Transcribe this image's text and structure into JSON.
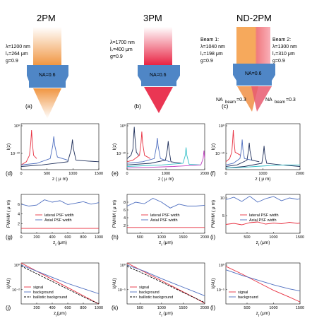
{
  "figure": {
    "columns": [
      {
        "title": "2PM",
        "params": [
          "λ=1200 nm",
          "lₛ=264 μm",
          "g=0.9"
        ],
        "na": "NA=0.6",
        "panel": "(a)"
      },
      {
        "title": "3PM",
        "params": [
          "λ=1700 nm",
          "lₛ=400 μm",
          "g=0.9"
        ],
        "na": "NA=0.6",
        "panel": "(b)"
      },
      {
        "title": "ND-2PM",
        "beam1": [
          "Beam 1:",
          "λ=1040 nm",
          "lₛ=198 μm",
          "g=0.9"
        ],
        "beam2": [
          "Beam 2:",
          "λ=1300 nm",
          "lₛ=310 μm",
          "g=0.9"
        ],
        "na": "NA=0.6",
        "na_beam_left": "NA",
        "na_beam_right": "NA",
        "na_beam_sub": "beam",
        "na_beam_val": "=0.3",
        "panel": "(c)"
      }
    ],
    "colors": {
      "orange": "#F0A050",
      "red": "#E83040",
      "blue": "#4F86C6",
      "navy": "#1F2F5A",
      "cyan": "#35C0C8",
      "magenta": "#C040C0"
    }
  },
  "chart_data": [
    {
      "id": "d",
      "type": "line",
      "panel": "(d)",
      "ylabel": "I(z)",
      "xlabel": "z ( μ m)",
      "xlim": [
        0,
        1500
      ],
      "xticks": [
        "0",
        "500",
        "1000",
        "1500"
      ],
      "yticks": [
        "10⁰",
        "10⁻¹⁰"
      ],
      "series": [
        {
          "color": "red",
          "x": [
            0,
            100,
            160,
            185,
            200,
            215,
            240,
            300
          ],
          "y": [
            -12,
            -11,
            -9,
            -5,
            -1,
            -5,
            -9,
            -10
          ]
        },
        {
          "color": "blue",
          "x": [
            0,
            300,
            560,
            610,
            630,
            650,
            700,
            900
          ],
          "y": [
            -12,
            -11.5,
            -10,
            -6,
            -3,
            -6,
            -9.5,
            -10.5
          ]
        },
        {
          "color": "navy",
          "x": [
            0,
            400,
            900,
            970,
            990,
            1010,
            1060,
            1300,
            1500
          ],
          "y": [
            -12.5,
            -12,
            -11,
            -7,
            -4,
            -7,
            -10.5,
            -10.8,
            -11
          ]
        }
      ]
    },
    {
      "id": "e",
      "type": "line",
      "panel": "(e)",
      "ylabel": "I(z)",
      "xlabel": "z ( μ m)",
      "xlim": [
        0,
        2000
      ],
      "xticks": [
        "0",
        "1000",
        "2000"
      ],
      "yticks": [
        "10⁰",
        "10⁻¹⁰"
      ],
      "series": [
        {
          "color": "navy",
          "x": [
            0,
            100,
            150,
            170,
            185,
            200,
            240,
            300
          ],
          "y": [
            -10,
            -9,
            -7,
            -3,
            0,
            -3,
            -8,
            -9
          ]
        },
        {
          "color": "red",
          "x": [
            0,
            150,
            320,
            360,
            380,
            400,
            450,
            600
          ],
          "y": [
            -11,
            -10.5,
            -9,
            -5,
            -1.5,
            -5,
            -9,
            -10
          ]
        },
        {
          "color": "blue",
          "x": [
            0,
            400,
            700,
            760,
            780,
            800,
            860,
            1100
          ],
          "y": [
            -11.5,
            -11,
            -10,
            -6,
            -3.5,
            -6,
            -10,
            -11
          ]
        },
        {
          "color": "navy",
          "x": [
            0,
            600,
            990,
            1040,
            1060,
            1080,
            1130,
            1400
          ],
          "y": [
            -12,
            -11.5,
            -10.5,
            -7,
            -4.5,
            -7,
            -11,
            -11.5
          ]
        },
        {
          "color": "cyan",
          "x": [
            0,
            900,
            1440,
            1500,
            1520,
            1540,
            1600,
            1900
          ],
          "y": [
            -12.5,
            -12,
            -11.5,
            -9,
            -6.5,
            -9,
            -11.8,
            -12
          ]
        },
        {
          "color": "magenta",
          "x": [
            0,
            1200,
            1900,
            1960,
            1980,
            2000
          ],
          "y": [
            -13,
            -12.5,
            -12,
            -10,
            -7.5,
            -10
          ]
        }
      ]
    },
    {
      "id": "f",
      "type": "line",
      "panel": "(f)",
      "ylabel": "I(z)",
      "xlabel": "z ( μ m)",
      "xlim": [
        0,
        2000
      ],
      "xticks": [
        "0",
        "1000",
        "2000"
      ],
      "yticks": [
        "10⁰",
        "10⁻¹⁰"
      ],
      "series": [
        {
          "color": "red",
          "x": [
            0,
            100,
            160,
            185,
            200,
            215,
            250,
            400
          ],
          "y": [
            -11,
            -10,
            -8,
            -4,
            -1,
            -4,
            -8,
            -9
          ]
        },
        {
          "color": "blue",
          "x": [
            0,
            200,
            380,
            420,
            440,
            460,
            500,
            700
          ],
          "y": [
            -12,
            -11.5,
            -10,
            -7,
            -4,
            -7,
            -10,
            -10.5
          ]
        },
        {
          "color": "navy",
          "x": [
            0,
            300,
            570,
            610,
            630,
            650,
            700,
            900
          ],
          "y": [
            -12.5,
            -12,
            -10.5,
            -7.5,
            -5,
            -7.5,
            -10.5,
            -11
          ]
        },
        {
          "color": "navy",
          "x": [
            0,
            500,
            970,
            1010,
            1030,
            1050,
            1100,
            1500,
            2000
          ],
          "y": [
            -13,
            -12.5,
            -11.5,
            -8.5,
            -6,
            -8.5,
            -11.5,
            -12,
            -12.5
          ]
        },
        {
          "color": "cyan",
          "x": [
            0,
            400,
            800,
            1200,
            1600,
            2000
          ],
          "y": [
            -13,
            -12.8,
            -12.5,
            -12.2,
            -12,
            -12
          ]
        }
      ]
    },
    {
      "id": "g",
      "type": "line",
      "panel": "(g)",
      "ylabel": "FWHM ( μ m)",
      "xlabel": "z",
      "xlabel_sub": "f",
      "xlabel_unit": " (μm)",
      "xlim": [
        0,
        1000
      ],
      "ylim": [
        0,
        8
      ],
      "xticks": [
        "0",
        "200",
        "400",
        "600",
        "800",
        "1000"
      ],
      "yticks": [
        "2",
        "4",
        "6"
      ],
      "legend": [
        "lateral PSF width",
        "Axial PSF width"
      ],
      "series": [
        {
          "name": "lateral PSF width",
          "color": "red",
          "x": [
            0,
            100,
            200,
            300,
            400,
            500,
            600,
            700,
            800,
            900,
            1000
          ],
          "y": [
            1.0,
            1.0,
            1.0,
            1.0,
            1.0,
            1.0,
            1.0,
            1.0,
            1.0,
            1.0,
            1.0
          ]
        },
        {
          "name": "Axial PSF width",
          "color": "blue",
          "x": [
            0,
            100,
            200,
            300,
            400,
            500,
            600,
            700,
            800,
            900,
            1000
          ],
          "y": [
            6.0,
            5.6,
            5.8,
            6.9,
            6.4,
            6.7,
            5.9,
            6.2,
            6.5,
            6.0,
            6.3
          ]
        }
      ]
    },
    {
      "id": "h",
      "type": "line",
      "panel": "(h)",
      "ylabel": "FWHM ( μ m)",
      "xlabel": "z",
      "xlabel_sub": "f",
      "xlabel_unit": " (μm)",
      "xlim": [
        200,
        2000
      ],
      "ylim": [
        0,
        10
      ],
      "xticks": [
        "500",
        "1000",
        "1500",
        "2000"
      ],
      "yticks": [
        "2",
        "4",
        "6",
        "8"
      ],
      "legend": [
        "lateral PSF width",
        "Axial PSF width"
      ],
      "series": [
        {
          "name": "lateral PSF width",
          "color": "red",
          "x": [
            200,
            2000
          ],
          "y": [
            1.5,
            1.5
          ]
        },
        {
          "name": "Axial PSF width",
          "color": "blue",
          "x": [
            200,
            400,
            600,
            800,
            1000,
            1200,
            1400,
            1600,
            1800,
            2000
          ],
          "y": [
            7.0,
            8.0,
            7.6,
            9.0,
            8.0,
            6.5,
            7.5,
            7.0,
            7.0,
            7.2
          ]
        }
      ]
    },
    {
      "id": "i",
      "type": "line",
      "panel": "(i)",
      "ylabel": "FWHM ( μ m)",
      "xlabel": "z",
      "xlabel_sub": "f",
      "xlabel_unit": " (μm)",
      "xlim": [
        100,
        1500
      ],
      "ylim": [
        0,
        11
      ],
      "xticks": [
        "500",
        "1000",
        "1500"
      ],
      "yticks": [
        "5",
        "10"
      ],
      "legend": [
        "lateral PSF width",
        "Axial PSF width"
      ],
      "series": [
        {
          "name": "lateral PSF width",
          "color": "red",
          "x": [
            100,
            250,
            400,
            550,
            700,
            850,
            1000,
            1150,
            1300,
            1450,
            1500
          ],
          "y": [
            2.5,
            2.8,
            2.4,
            3.0,
            3.2,
            2.6,
            2.9,
            2.7,
            3.1,
            2.8,
            2.9
          ]
        },
        {
          "name": "Axial PSF width",
          "color": "blue",
          "x": [
            100,
            250,
            400,
            550,
            700,
            850,
            1000,
            1150,
            1300,
            1450,
            1500
          ],
          "y": [
            9.5,
            10.2,
            9.0,
            10.5,
            8.8,
            9.8,
            10.4,
            9.2,
            10.0,
            9.6,
            9.8
          ]
        }
      ]
    },
    {
      "id": "j",
      "type": "line",
      "panel": "(j)",
      "ylabel": "I(AU)",
      "xlabel": "z",
      "xlabel_sub": "f",
      "xlabel_unit": "(μm)",
      "xlim": [
        0,
        1000
      ],
      "ylim": [
        -4,
        0
      ],
      "xticks": [
        "200",
        "400",
        "600",
        "800",
        "1000"
      ],
      "yticks": [
        "10⁰",
        "10⁻²"
      ],
      "legend": [
        "signal",
        "background",
        "ballistic background"
      ],
      "series": [
        {
          "name": "signal",
          "color": "red",
          "x": [
            0,
            200,
            400,
            600,
            800,
            1000
          ],
          "y": [
            0,
            -0.8,
            -1.6,
            -2.4,
            -3.2,
            -4.0
          ]
        },
        {
          "name": "background",
          "color": "blue",
          "x": [
            0,
            200,
            400,
            600,
            800,
            1000
          ],
          "y": [
            -0.2,
            -0.8,
            -1.4,
            -2.0,
            -2.5,
            -3.0
          ]
        },
        {
          "name": "ballistic background",
          "color": "black",
          "dash": true,
          "x": [
            0,
            200,
            400,
            600,
            800,
            1000
          ],
          "y": [
            -0.3,
            -1.05,
            -1.8,
            -2.55,
            -3.3,
            -4.0
          ]
        }
      ]
    },
    {
      "id": "k",
      "type": "line",
      "panel": "(k)",
      "ylabel": "I(AU)",
      "xlabel": "z",
      "xlabel_sub": "f",
      "xlabel_unit": " (μm)",
      "xlim": [
        200,
        2000
      ],
      "ylim": [
        -6,
        0
      ],
      "xticks": [
        "500",
        "1000",
        "1500",
        "2000"
      ],
      "yticks": [
        "10⁰",
        "10⁻⁵"
      ],
      "legend": [
        "signal",
        "background",
        "ballistic background"
      ],
      "series": [
        {
          "name": "signal",
          "color": "red",
          "x": [
            200,
            600,
            1000,
            1400,
            1800,
            2000
          ],
          "y": [
            0,
            -1.3,
            -2.6,
            -3.9,
            -5.2,
            -5.9
          ]
        },
        {
          "name": "background",
          "color": "blue",
          "x": [
            200,
            600,
            1000,
            1400,
            1800,
            2000
          ],
          "y": [
            -0.3,
            -1.2,
            -2.3,
            -3.3,
            -4.3,
            -4.8
          ]
        },
        {
          "name": "ballistic background",
          "color": "black",
          "dash": true,
          "x": [
            200,
            600,
            1000,
            1400,
            1800,
            2000
          ],
          "y": [
            -0.5,
            -1.6,
            -2.8,
            -4.0,
            -5.2,
            -5.8
          ]
        }
      ]
    },
    {
      "id": "l",
      "type": "line",
      "panel": "(l)",
      "ylabel": "I(AU)",
      "xlabel": "z",
      "xlabel_sub": "f",
      "xlabel_unit": " (μm)",
      "xlim": [
        100,
        1500
      ],
      "ylim": [
        -6,
        0
      ],
      "xticks": [
        "500",
        "1000",
        "1500"
      ],
      "yticks": [
        "10⁰",
        "10⁻⁵"
      ],
      "legend": [
        "signal",
        "background"
      ],
      "series": [
        {
          "name": "signal",
          "color": "red",
          "x": [
            100,
            400,
            700,
            1000,
            1300,
            1500
          ],
          "y": [
            -0.5,
            -1.6,
            -2.8,
            -4.0,
            -5.0,
            -5.7
          ]
        },
        {
          "name": "background",
          "color": "blue",
          "x": [
            100,
            400,
            700,
            1000,
            1300,
            1500
          ],
          "y": [
            -1.0,
            -1.8,
            -2.5,
            -3.2,
            -3.8,
            -4.1
          ]
        }
      ]
    }
  ]
}
